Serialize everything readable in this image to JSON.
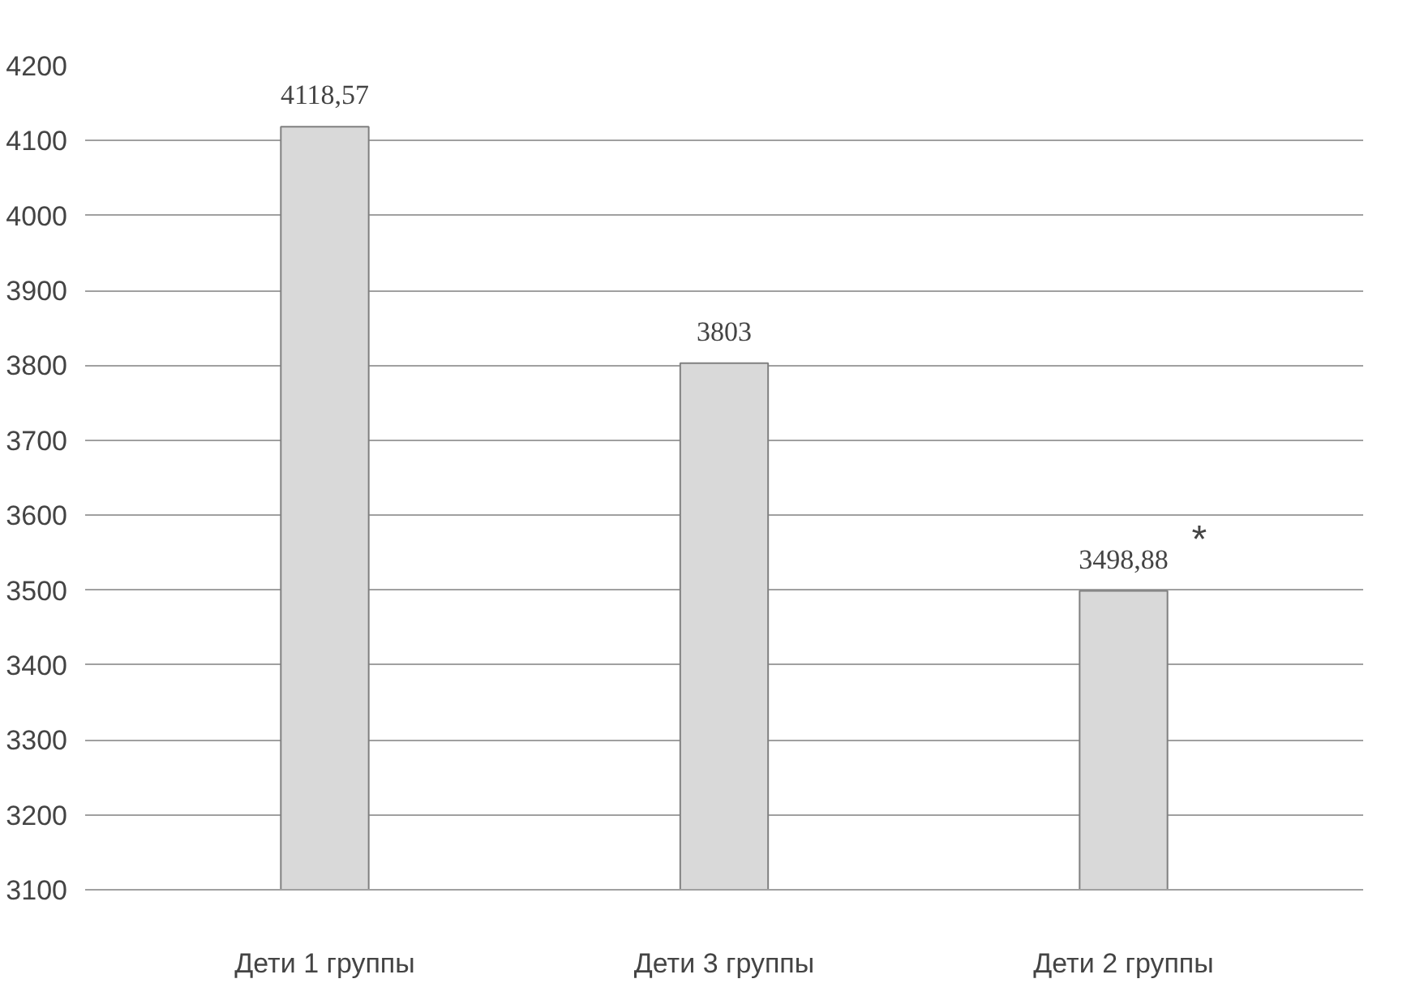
{
  "chart_data": {
    "type": "bar",
    "categories": [
      "Дети 1 группы",
      "Дети 3 группы",
      "Дети 2 группы"
    ],
    "values": [
      4118.57,
      3803,
      3498.88
    ],
    "value_labels": [
      "4118,57",
      "3803",
      "3498,88"
    ],
    "color": "#d9d9d9",
    "ylim": [
      3100,
      4200
    ],
    "yticks": [
      3100,
      3200,
      3300,
      3400,
      3500,
      3600,
      3700,
      3800,
      3900,
      4000,
      4100,
      4200
    ],
    "grid": "y",
    "annotations": [
      {
        "text": "*",
        "x": "Дети 2 группы",
        "y": 3498.88
      }
    ]
  }
}
